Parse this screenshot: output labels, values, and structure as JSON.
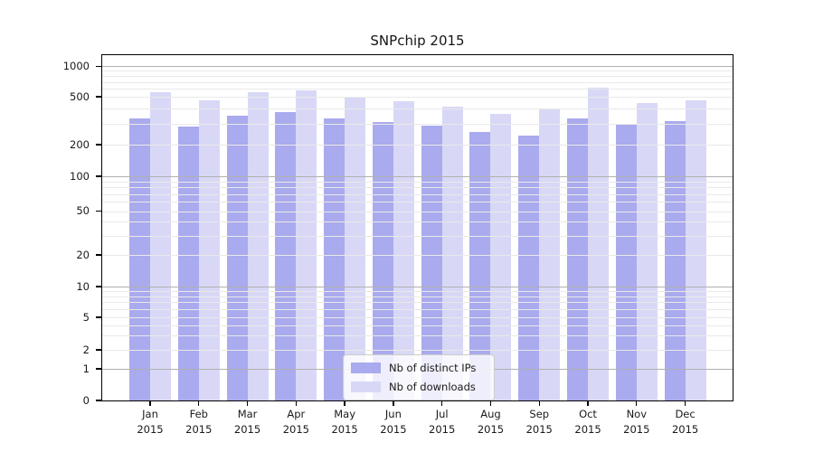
{
  "chart_data": {
    "type": "bar",
    "title": "SNPchip 2015",
    "categories": [
      "Jan 2015",
      "Feb 2015",
      "Mar 2015",
      "Apr 2015",
      "May 2015",
      "Jun 2015",
      "Jul 2015",
      "Aug 2015",
      "Sep 2015",
      "Oct 2015",
      "Nov 2015",
      "Dec 2015"
    ],
    "x_tick_months": [
      "Jan",
      "Feb",
      "Mar",
      "Apr",
      "May",
      "Jun",
      "Jul",
      "Aug",
      "Sep",
      "Oct",
      "Nov",
      "Dec"
    ],
    "x_tick_year": "2015",
    "series": [
      {
        "name": "Nb of distinct IPs",
        "color": "#aaaaee",
        "values": [
          330,
          285,
          350,
          370,
          330,
          310,
          288,
          254,
          238,
          328,
          300,
          313
        ]
      },
      {
        "name": "Nb of downloads",
        "color": "#d8d8f6",
        "values": [
          555,
          470,
          555,
          580,
          495,
          460,
          410,
          360,
          400,
          610,
          445,
          470
        ]
      }
    ],
    "yscale": "log-like (0,1,2,5,10,20,50,100,200,500,1000)",
    "y_ticks": [
      0,
      1,
      2,
      5,
      10,
      20,
      50,
      100,
      200,
      500,
      1000
    ],
    "ylim": [
      0,
      1300
    ],
    "grid": "horizontal, major and minor, drawn over bars",
    "grid_major_color": "#b0b0b0",
    "grid_minor_color": "#e9e9e9",
    "legend_position": "lower center",
    "legend_items": [
      "Nb of distinct IPs",
      "Nb of downloads"
    ]
  }
}
